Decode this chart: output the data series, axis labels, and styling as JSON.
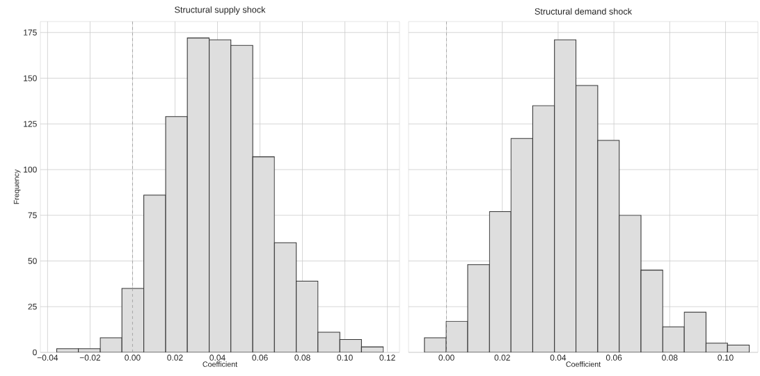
{
  "chart_data": [
    {
      "type": "histogram",
      "title": "Structural supply shock",
      "xlabel": "Coefficient",
      "ylabel": "Frequency",
      "bins": [
        -0.0357,
        -0.0255,
        -0.0152,
        -0.005,
        0.0053,
        0.0156,
        0.0258,
        0.0361,
        0.0463,
        0.0566,
        0.0668,
        0.0771,
        0.0873,
        0.0976,
        0.1078,
        0.1181
      ],
      "values": [
        2,
        2,
        8,
        35,
        86,
        129,
        172,
        171,
        168,
        107,
        60,
        39,
        11,
        7,
        3
      ],
      "color": "#dedede",
      "xlim": [
        -0.0434,
        0.1257
      ],
      "ylim": [
        0,
        181
      ],
      "xticks": [
        {
          "value": -0.04,
          "label": "−0.04"
        },
        {
          "value": -0.02,
          "label": "−0.02"
        },
        {
          "value": 0,
          "label": "0.00"
        },
        {
          "value": 0.02,
          "label": "0.02"
        },
        {
          "value": 0.04,
          "label": "0.04"
        },
        {
          "value": 0.06,
          "label": "0.06"
        },
        {
          "value": 0.08,
          "label": "0.08"
        },
        {
          "value": 0.1,
          "label": "0.10"
        },
        {
          "value": 0.12,
          "label": "0.12"
        }
      ],
      "yticks": [
        0,
        25,
        50,
        75,
        100,
        125,
        150,
        175
      ],
      "grid": true,
      "ref_lines": [
        {
          "axis": "x",
          "value": 0,
          "color": "#999999",
          "line_style": "dashed"
        }
      ]
    },
    {
      "type": "histogram",
      "title": "Structural demand shock",
      "xlabel": "Coefficient",
      "bins": [
        -0.0079,
        -0.0001,
        0.0076,
        0.0154,
        0.0231,
        0.0309,
        0.0387,
        0.0464,
        0.0542,
        0.0619,
        0.0697,
        0.0775,
        0.0852,
        0.093,
        0.1007,
        0.1085
      ],
      "values": [
        8,
        17,
        48,
        77,
        117,
        135,
        171,
        146,
        116,
        75,
        45,
        14,
        22,
        5,
        4
      ],
      "color": "#dedede",
      "xlim": [
        -0.0136,
        0.1116
      ],
      "ylim": [
        0,
        181
      ],
      "xticks": [
        {
          "value": 0,
          "label": "0.00"
        },
        {
          "value": 0.02,
          "label": "0.02"
        },
        {
          "value": 0.04,
          "label": "0.04"
        },
        {
          "value": 0.06,
          "label": "0.06"
        },
        {
          "value": 0.08,
          "label": "0.08"
        },
        {
          "value": 0.1,
          "label": "0.10"
        }
      ],
      "yticks": [
        0,
        25,
        50,
        75,
        100,
        125,
        150,
        175
      ],
      "grid": true,
      "tick_labels": "x",
      "ref_lines": [
        {
          "axis": "x",
          "value": 0,
          "color": "#999999",
          "line_style": "dashed"
        }
      ]
    }
  ]
}
